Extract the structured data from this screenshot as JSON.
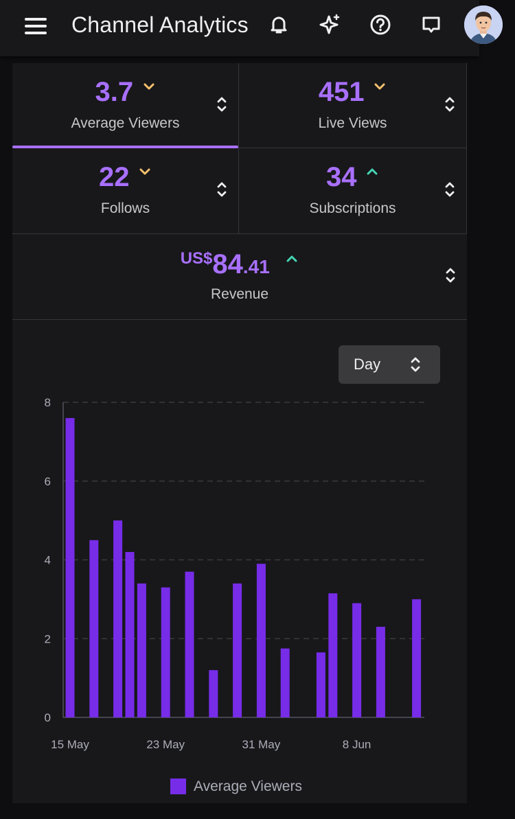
{
  "app": {
    "title": "Channel Analytics"
  },
  "topbar_icons": [
    "menu-icon",
    "bell-icon",
    "sparkle-icon",
    "help-icon",
    "chat-icon",
    "avatar"
  ],
  "stats": {
    "average_viewers": {
      "value": "3.7",
      "label": "Average Viewers",
      "trend": "down"
    },
    "live_views": {
      "value": "451",
      "label": "Live Views",
      "trend": "down"
    },
    "follows": {
      "value": "22",
      "label": "Follows",
      "trend": "down"
    },
    "subscriptions": {
      "value": "34",
      "label": "Subscriptions",
      "trend": "up"
    },
    "revenue": {
      "currency": "US$",
      "value_main": "84",
      "value_cents": ".41",
      "label": "Revenue",
      "trend": "up"
    }
  },
  "interval": {
    "selected": "Day"
  },
  "colors": {
    "accent": "#a970ff",
    "bar": "#772ce8",
    "trend_down": "#f5c16c",
    "trend_up": "#45d6b4",
    "background": "#18181b"
  },
  "chart_data": {
    "type": "bar",
    "x_ticks": [
      "15 May",
      "23 May",
      "31 May",
      "8 Jun"
    ],
    "series": [
      {
        "name": "Average Viewers",
        "points": [
          {
            "x": "15 May",
            "y": 7.6
          },
          {
            "x": "17 May",
            "y": 4.5
          },
          {
            "x": "19 May",
            "y": 5.0
          },
          {
            "x": "20 May",
            "y": 4.2
          },
          {
            "x": "21 May",
            "y": 3.4
          },
          {
            "x": "23 May",
            "y": 3.3
          },
          {
            "x": "25 May",
            "y": 3.7
          },
          {
            "x": "27 May",
            "y": 1.2
          },
          {
            "x": "29 May",
            "y": 3.4
          },
          {
            "x": "31 May",
            "y": 3.9
          },
          {
            "x": "2 Jun",
            "y": 1.75
          },
          {
            "x": "5 Jun",
            "y": 1.65
          },
          {
            "x": "6 Jun",
            "y": 3.15
          },
          {
            "x": "8 Jun",
            "y": 2.9
          },
          {
            "x": "10 Jun",
            "y": 2.3
          },
          {
            "x": "13 Jun",
            "y": 3.0
          }
        ]
      }
    ],
    "y_ticks": [
      0,
      2,
      4,
      6,
      8
    ],
    "ylim": [
      0,
      8
    ],
    "grid": "horizontal dashed",
    "legend": "bottom"
  }
}
